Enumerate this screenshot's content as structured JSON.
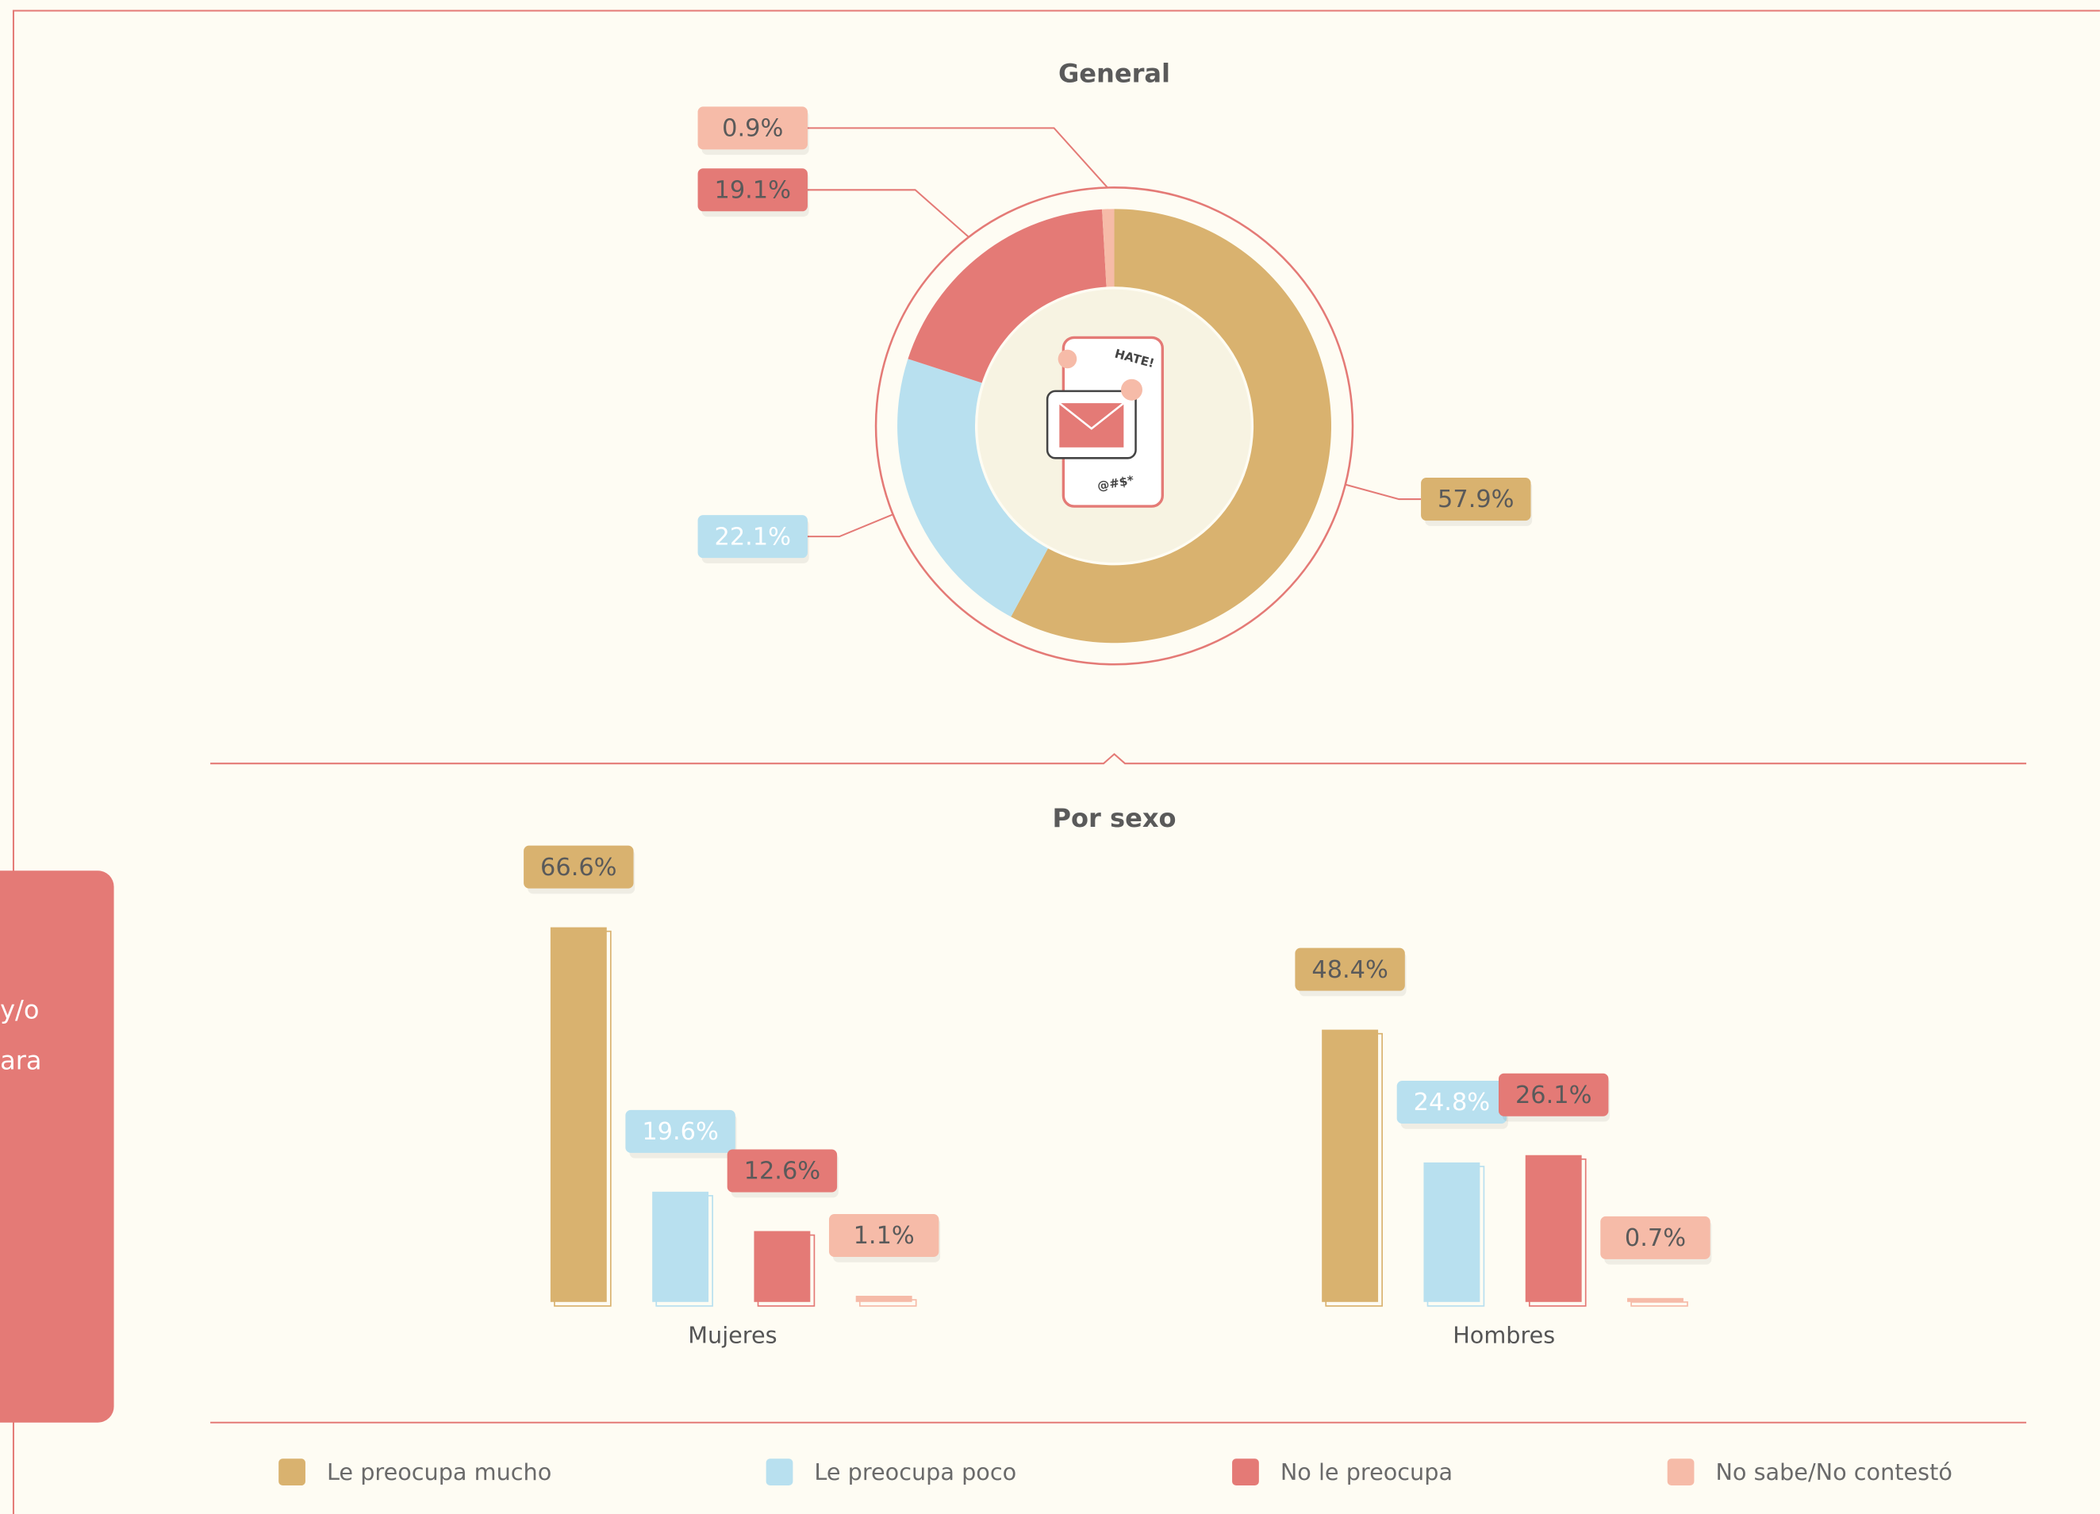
{
  "chart_data": [
    {
      "type": "pie",
      "title": "General",
      "categories": [
        "Le preocupa mucho",
        "Le preocupa poco",
        "No le preocupa",
        "No sabe/No contestó"
      ],
      "values": [
        57.9,
        22.1,
        19.1,
        0.9
      ],
      "value_labels": [
        "57.9%",
        "22.1%",
        "19.1%",
        "0.9%"
      ],
      "colors": [
        "#d9b26f",
        "#b8e0ef",
        "#e47a76",
        "#f6bba8"
      ]
    },
    {
      "type": "bar",
      "title": "Por sexo",
      "categories": [
        "Mujeres",
        "Hombres"
      ],
      "series": [
        {
          "name": "Le preocupa mucho",
          "color": "#d9b26f",
          "values": [
            66.6,
            48.4
          ],
          "value_labels": [
            "66.6%",
            "48.4%"
          ]
        },
        {
          "name": "Le preocupa poco",
          "color": "#b8e0ef",
          "values": [
            19.6,
            24.8
          ],
          "value_labels": [
            "19.6%",
            "24.8%"
          ]
        },
        {
          "name": "No le preocupa",
          "color": "#e47a76",
          "values": [
            12.6,
            26.1
          ],
          "value_labels": [
            "12.6%",
            "26.1%"
          ]
        },
        {
          "name": "No sabe/No contestó",
          "color": "#f6bba8",
          "values": [
            1.1,
            0.7
          ],
          "value_labels": [
            "1.1%",
            "0.7%"
          ]
        }
      ],
      "legend": "bottom"
    }
  ],
  "side_panel_text": [
    "y/o",
    "ara"
  ],
  "illustration": {
    "texts": [
      "HATE!",
      "@#$*"
    ]
  }
}
